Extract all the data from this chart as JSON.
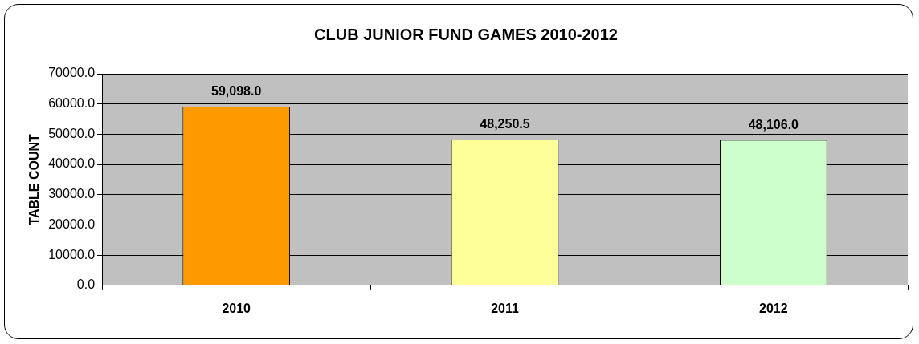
{
  "chart_data": {
    "type": "bar",
    "title": "CLUB JUNIOR FUND GAMES 2010-2012",
    "ylabel": "TABLE COUNT",
    "categories": [
      "2010",
      "2011",
      "2012"
    ],
    "values": [
      59098.0,
      48250.5,
      48106.0
    ],
    "colors": [
      "#ff9900",
      "#ffff99",
      "#ccffcc"
    ],
    "value_labels": [
      "59,098.0",
      "48,250.5",
      "48,106.0"
    ],
    "ylim": [
      0,
      70000
    ],
    "yticks": [
      {
        "value": 0,
        "label": "0.0"
      },
      {
        "value": 10000,
        "label": "10000.0"
      },
      {
        "value": 20000,
        "label": "20000.0"
      },
      {
        "value": 30000,
        "label": "30000.0"
      },
      {
        "value": 40000,
        "label": "40000.0"
      },
      {
        "value": 50000,
        "label": "50000.0"
      },
      {
        "value": 60000,
        "label": "60000.0"
      },
      {
        "value": 70000,
        "label": "70000.0"
      }
    ],
    "grid": "y",
    "legend": false
  }
}
